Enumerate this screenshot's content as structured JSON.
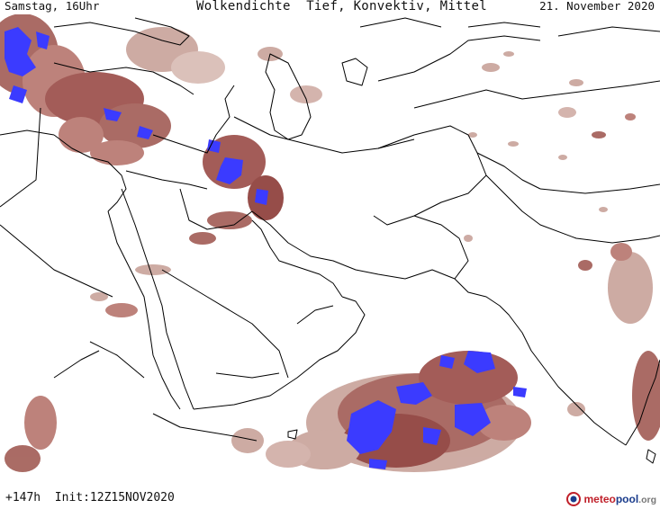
{
  "header": {
    "left": "Samstag, 16Uhr",
    "center": "Wolkendichte  Tief, Konvektiv, Mittel",
    "right": "21. November 2020"
  },
  "footer": {
    "left": "+147h  Init:12Z15NOV2020",
    "logo_part1": "meteo",
    "logo_part2": "pool",
    "logo_part3": ".org"
  },
  "colors": {
    "cloud_low": "#c9a49c",
    "cloud_mid": "#a35f58",
    "cloud_high": "#7d2a2a",
    "convective": "#3b3bff",
    "borders": "#000000",
    "background": "#ffffff"
  },
  "icons": {
    "logo": "meteopool-logo-icon"
  }
}
